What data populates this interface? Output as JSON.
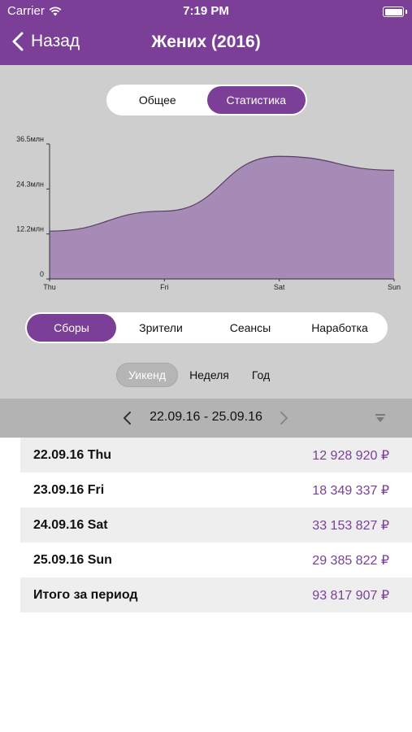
{
  "status_bar": {
    "carrier": "Carrier",
    "time": "7:19 PM"
  },
  "nav": {
    "back_label": "Назад",
    "title": "Жених (2016)"
  },
  "view_tabs": [
    {
      "label": "Общее",
      "active": false
    },
    {
      "label": "Статистика",
      "active": true
    }
  ],
  "chart_data": {
    "type": "area",
    "x": [
      "Thu",
      "Fri",
      "Sat",
      "Sun"
    ],
    "series": [
      {
        "values": [
          12928920,
          18349337,
          33153827,
          29385822
        ]
      }
    ],
    "yticks": [
      "0",
      "12.2млн",
      "24.3млн",
      "36.5млн"
    ],
    "ylim": [
      0,
      36500000
    ],
    "grid": false,
    "fill_color": "#a58bb5",
    "line_color": "#5a3d66"
  },
  "metric_tabs": [
    {
      "label": "Сборы",
      "active": true
    },
    {
      "label": "Зрители",
      "active": false
    },
    {
      "label": "Сеансы",
      "active": false
    },
    {
      "label": "Наработка",
      "active": false
    }
  ],
  "period_tabs": [
    {
      "label": "Уикенд",
      "active": true
    },
    {
      "label": "Неделя",
      "active": false
    },
    {
      "label": "Год",
      "active": false
    }
  ],
  "range": {
    "text": "22.09.16 - 25.09.16"
  },
  "rows": [
    {
      "label": "22.09.16 Thu",
      "value": "12 928 920 ₽"
    },
    {
      "label": "23.09.16 Fri",
      "value": "18 349 337 ₽"
    },
    {
      "label": "24.09.16 Sat",
      "value": "33 153 827 ₽"
    },
    {
      "label": "25.09.16 Sun",
      "value": "29 385 822 ₽"
    },
    {
      "label": "Итого за период",
      "value": "93 817 907 ₽"
    }
  ],
  "colors": {
    "accent": "#7b3f98",
    "chart_bg": "#cecece",
    "range_bar": "#b3b3b3"
  }
}
